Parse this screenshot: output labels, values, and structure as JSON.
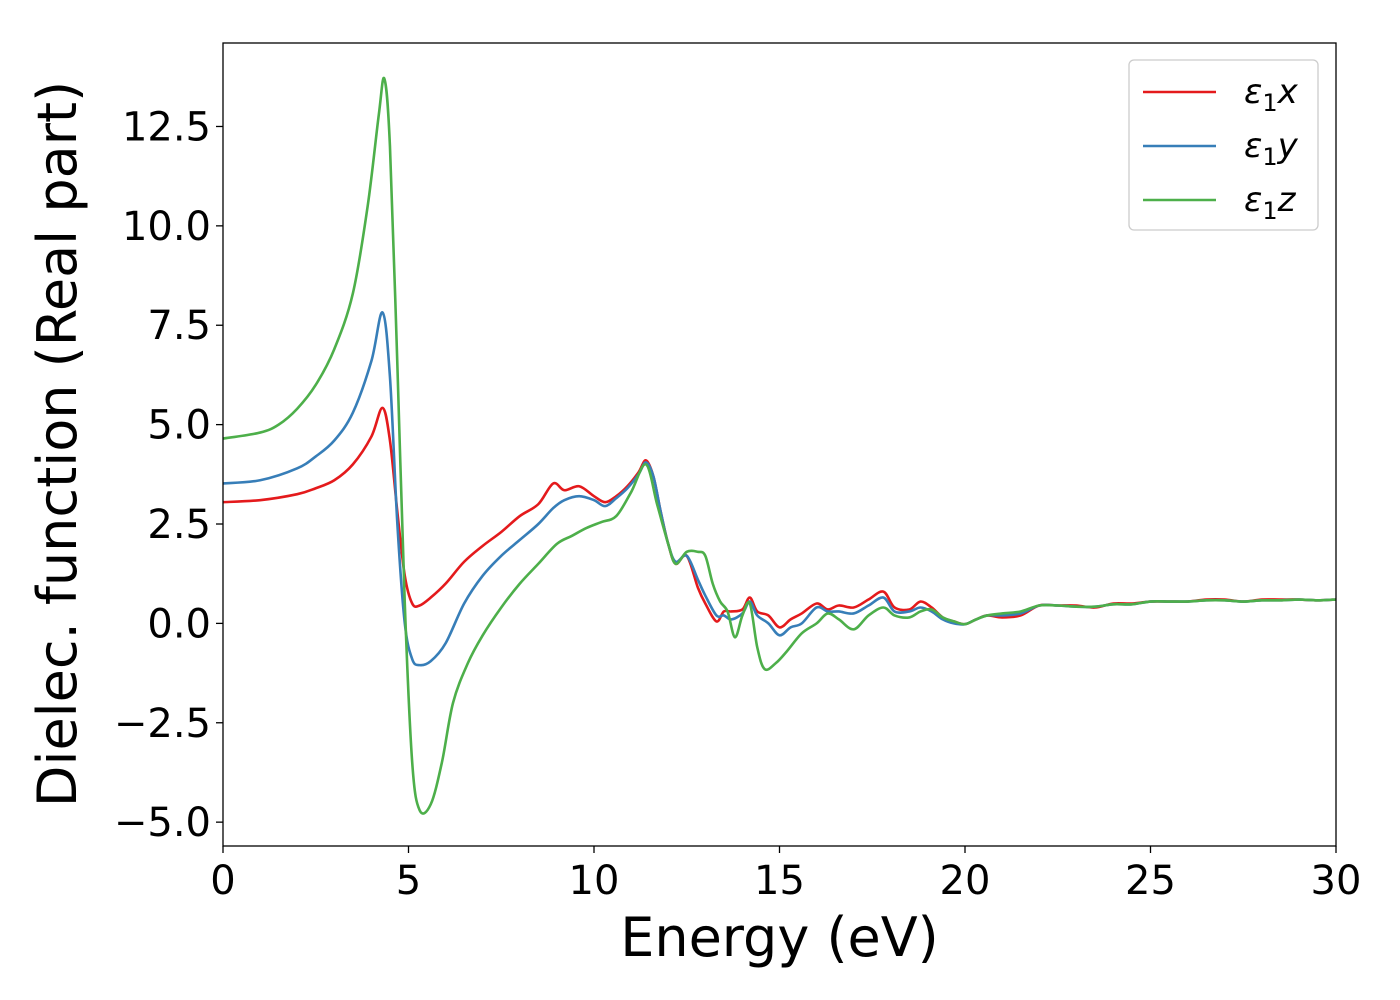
{
  "chart_data": {
    "type": "line",
    "xlabel": "Energy (eV)",
    "ylabel": "Dielec. function (Real part)",
    "xlim": [
      0,
      30
    ],
    "ylim": [
      -5.6,
      14.6
    ],
    "xticks": [
      0,
      5,
      10,
      15,
      20,
      25,
      30
    ],
    "xtick_labels": [
      "0",
      "5",
      "10",
      "15",
      "20",
      "25",
      "30"
    ],
    "yticks": [
      -5.0,
      -2.5,
      0.0,
      2.5,
      5.0,
      7.5,
      10.0,
      12.5
    ],
    "ytick_labels": [
      "−5.0",
      "−2.5",
      "0.0",
      "2.5",
      "5.0",
      "7.5",
      "10.0",
      "12.5"
    ],
    "grid": false,
    "legend_position": "top-right",
    "series": [
      {
        "name": "ε₁x",
        "legend_main": "ε",
        "legend_sub": "1",
        "legend_var": "x",
        "color": "#e41a1c",
        "x": [
          0,
          1,
          2,
          2.5,
          3,
          3.5,
          4,
          4.3,
          4.5,
          4.7,
          4.9,
          5.1,
          5.3,
          5.6,
          6,
          6.5,
          7,
          7.5,
          8,
          8.5,
          8.9,
          9.2,
          9.6,
          10,
          10.3,
          10.6,
          10.9,
          11.2,
          11.4,
          11.6,
          11.8,
          12,
          12.2,
          12.5,
          12.8,
          13,
          13.3,
          13.5,
          13.7,
          14,
          14.2,
          14.4,
          14.7,
          15,
          15.3,
          15.6,
          16,
          16.3,
          16.6,
          17,
          17.4,
          17.8,
          18.1,
          18.5,
          18.8,
          19.1,
          19.4,
          19.7,
          20,
          20.3,
          20.6,
          21,
          21.5,
          22,
          22.5,
          23,
          23.5,
          24,
          24.5,
          25,
          25.5,
          26,
          26.5,
          27,
          27.5,
          28,
          28.5,
          29,
          29.5,
          30
        ],
        "y": [
          3.05,
          3.1,
          3.25,
          3.4,
          3.6,
          4.0,
          4.7,
          5.42,
          4.6,
          2.8,
          1.2,
          0.5,
          0.45,
          0.65,
          1.0,
          1.55,
          1.95,
          2.3,
          2.7,
          3.0,
          3.52,
          3.35,
          3.45,
          3.2,
          3.05,
          3.2,
          3.45,
          3.8,
          4.1,
          3.7,
          2.8,
          2.0,
          1.5,
          1.7,
          0.9,
          0.5,
          0.05,
          0.3,
          0.3,
          0.35,
          0.65,
          0.3,
          0.2,
          -0.1,
          0.1,
          0.25,
          0.5,
          0.35,
          0.45,
          0.4,
          0.6,
          0.8,
          0.4,
          0.35,
          0.55,
          0.4,
          0.15,
          0.05,
          -0.02,
          0.1,
          0.2,
          0.15,
          0.2,
          0.45,
          0.45,
          0.45,
          0.4,
          0.5,
          0.5,
          0.55,
          0.55,
          0.55,
          0.6,
          0.6,
          0.55,
          0.6,
          0.6,
          0.6,
          0.58,
          0.6
        ]
      },
      {
        "name": "ε₁y",
        "legend_main": "ε",
        "legend_sub": "1",
        "legend_var": "y",
        "color": "#377eb8",
        "x": [
          0,
          1,
          2,
          2.5,
          3,
          3.5,
          4,
          4.3,
          4.5,
          4.7,
          4.9,
          5.1,
          5.3,
          5.6,
          6,
          6.5,
          7,
          7.5,
          8,
          8.5,
          8.9,
          9.2,
          9.6,
          10,
          10.3,
          10.6,
          10.9,
          11.2,
          11.4,
          11.6,
          11.8,
          12,
          12.2,
          12.5,
          12.8,
          13,
          13.3,
          13.5,
          13.7,
          14,
          14.2,
          14.4,
          14.7,
          15,
          15.3,
          15.6,
          16,
          16.3,
          16.6,
          17,
          17.4,
          17.8,
          18.1,
          18.5,
          18.8,
          19.1,
          19.4,
          19.7,
          20,
          20.3,
          20.6,
          21,
          21.5,
          22,
          22.5,
          23,
          23.5,
          24,
          24.5,
          25,
          25.5,
          26,
          26.5,
          27,
          27.5,
          28,
          28.5,
          29,
          29.5,
          30
        ],
        "y": [
          3.52,
          3.6,
          3.9,
          4.2,
          4.6,
          5.3,
          6.6,
          7.82,
          6.2,
          2.5,
          0.0,
          -0.9,
          -1.05,
          -0.95,
          -0.5,
          0.5,
          1.2,
          1.7,
          2.1,
          2.5,
          2.9,
          3.1,
          3.2,
          3.1,
          2.95,
          3.15,
          3.4,
          3.75,
          4.05,
          3.7,
          2.8,
          2.0,
          1.55,
          1.7,
          1.1,
          0.7,
          0.2,
          0.2,
          0.1,
          0.25,
          0.55,
          0.2,
          0.0,
          -0.3,
          -0.1,
          0.0,
          0.4,
          0.3,
          0.3,
          0.25,
          0.45,
          0.65,
          0.3,
          0.3,
          0.4,
          0.3,
          0.1,
          0.0,
          -0.02,
          0.1,
          0.2,
          0.2,
          0.25,
          0.45,
          0.45,
          0.42,
          0.42,
          0.48,
          0.48,
          0.55,
          0.55,
          0.55,
          0.58,
          0.58,
          0.55,
          0.58,
          0.58,
          0.6,
          0.58,
          0.6
        ]
      },
      {
        "name": "ε₁z",
        "legend_main": "ε",
        "legend_sub": "1",
        "legend_var": "z",
        "color": "#4daf4a",
        "x": [
          0,
          1,
          1.5,
          2,
          2.5,
          3,
          3.5,
          3.9,
          4.2,
          4.35,
          4.5,
          4.7,
          4.9,
          5.1,
          5.3,
          5.6,
          5.9,
          6.2,
          6.6,
          7,
          7.5,
          8,
          8.5,
          9,
          9.4,
          9.8,
          10.2,
          10.6,
          11,
          11.4,
          11.7,
          12,
          12.2,
          12.5,
          12.8,
          13,
          13.2,
          13.4,
          13.6,
          13.8,
          14,
          14.2,
          14.4,
          14.6,
          14.9,
          15.2,
          15.6,
          16,
          16.3,
          16.6,
          17,
          17.4,
          17.8,
          18.1,
          18.5,
          18.8,
          19.1,
          19.4,
          19.7,
          20,
          20.3,
          20.6,
          21,
          21.5,
          22,
          22.5,
          23,
          23.5,
          24,
          24.5,
          25,
          25.5,
          26,
          26.5,
          27,
          27.5,
          28,
          28.5,
          29,
          29.5,
          30
        ],
        "y": [
          4.65,
          4.8,
          5.0,
          5.4,
          6.0,
          6.9,
          8.3,
          10.5,
          12.8,
          13.7,
          12.0,
          6.5,
          0.5,
          -3.5,
          -4.7,
          -4.55,
          -3.5,
          -2.0,
          -1.0,
          -0.3,
          0.4,
          1.0,
          1.5,
          2.0,
          2.2,
          2.4,
          2.55,
          2.7,
          3.3,
          4.0,
          3.0,
          2.0,
          1.5,
          1.8,
          1.8,
          1.7,
          1.0,
          0.55,
          0.3,
          -0.35,
          0.2,
          0.5,
          -0.6,
          -1.15,
          -1.0,
          -0.7,
          -0.25,
          0.0,
          0.25,
          0.1,
          -0.15,
          0.2,
          0.4,
          0.2,
          0.15,
          0.3,
          0.35,
          0.15,
          0.05,
          -0.02,
          0.1,
          0.2,
          0.25,
          0.3,
          0.45,
          0.45,
          0.42,
          0.42,
          0.48,
          0.48,
          0.55,
          0.55,
          0.55,
          0.58,
          0.58,
          0.55,
          0.58,
          0.58,
          0.6,
          0.58,
          0.6
        ]
      }
    ]
  }
}
